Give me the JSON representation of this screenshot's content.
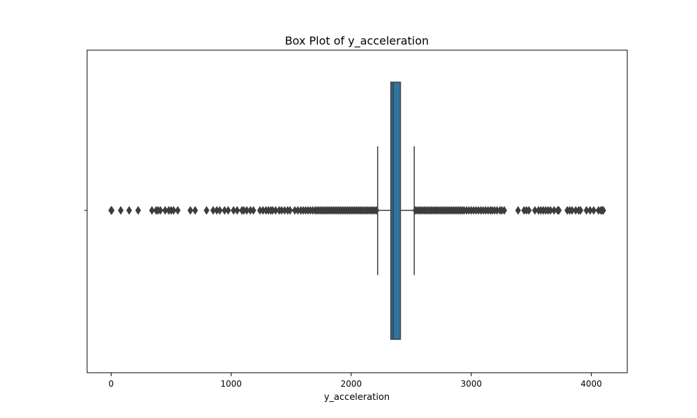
{
  "chart_data": {
    "type": "box",
    "title": "Box Plot of y_acceleration",
    "xlabel": "y_acceleration",
    "ylabel": "",
    "xlim": [
      -200,
      4300
    ],
    "xticks": [
      0,
      1000,
      2000,
      3000,
      4000
    ],
    "xtick_labels": [
      "0",
      "1000",
      "2000",
      "3000",
      "4000"
    ],
    "grid": false,
    "box": {
      "q1": 2330,
      "median": 2350,
      "q3": 2410,
      "whisker_low": 2220,
      "whisker_high": 2525,
      "color": "#3274a1"
    },
    "outliers_low": [
      0,
      5,
      80,
      150,
      225,
      340,
      375,
      390,
      410,
      450,
      480,
      500,
      520,
      555,
      660,
      700,
      795,
      850,
      880,
      905,
      945,
      975,
      1020,
      1050,
      1090,
      1105,
      1130,
      1160,
      1185,
      1240,
      1265,
      1290,
      1310,
      1330,
      1345,
      1370,
      1400,
      1420,
      1445,
      1470,
      1490,
      1530,
      1555,
      1580,
      1600,
      1620,
      1640,
      1660,
      1680,
      1700,
      1715,
      1730,
      1745,
      1760,
      1775,
      1790,
      1805,
      1820,
      1835,
      1850,
      1865,
      1880,
      1895,
      1910,
      1925,
      1940,
      1955,
      1970,
      1985,
      2000,
      2015,
      2030,
      2045,
      2060,
      2075,
      2090,
      2105,
      2120,
      2135,
      2150,
      2165,
      2180,
      2195,
      2210
    ],
    "outliers_high": [
      2535,
      2550,
      2565,
      2580,
      2595,
      2610,
      2625,
      2640,
      2655,
      2670,
      2685,
      2700,
      2715,
      2730,
      2745,
      2760,
      2775,
      2790,
      2805,
      2820,
      2835,
      2850,
      2865,
      2880,
      2895,
      2910,
      2925,
      2940,
      2960,
      2980,
      3000,
      3020,
      3040,
      3060,
      3080,
      3100,
      3120,
      3140,
      3160,
      3175,
      3195,
      3215,
      3240,
      3255,
      3275,
      3390,
      3440,
      3460,
      3480,
      3530,
      3560,
      3580,
      3600,
      3620,
      3640,
      3660,
      3690,
      3720,
      3730,
      3800,
      3820,
      3840,
      3870,
      3895,
      3910,
      3960,
      3990,
      4020,
      4060,
      4080,
      4090,
      4100
    ]
  }
}
